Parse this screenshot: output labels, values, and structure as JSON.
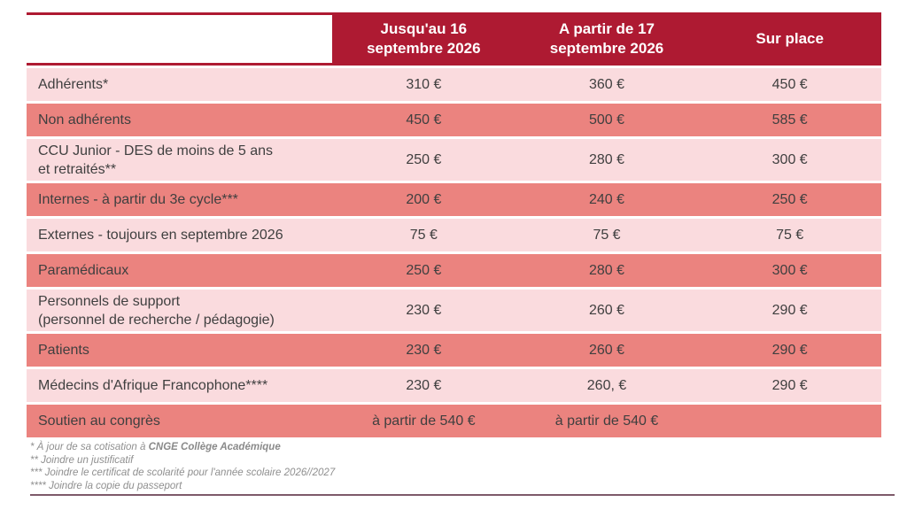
{
  "colors": {
    "header_red": "#ae1a32",
    "row_salmon": "#eb837f",
    "row_pink": "#fadbde",
    "footnote_gray": "#8f8f8f"
  },
  "table": {
    "columns": [
      "",
      "Jusqu'au 16\nseptembre 2026",
      "A partir de 17\nseptembre 2026",
      "Sur place"
    ],
    "rows": [
      {
        "label": "Adhérents*",
        "shade": "light",
        "size": "single",
        "values": [
          "310 €",
          "360 €",
          "450 €"
        ]
      },
      {
        "label": "Non adhérents",
        "shade": "dark",
        "size": "single",
        "values": [
          "450 €",
          "500 €",
          "585 €"
        ]
      },
      {
        "label": "CCU Junior - DES de moins de 5 ans\net retraités**",
        "shade": "light",
        "size": "double",
        "values": [
          "250 €",
          "280 €",
          "300 €"
        ]
      },
      {
        "label": "Internes - à partir du 3e cycle***",
        "shade": "dark",
        "size": "single",
        "values": [
          "200 €",
          "240 €",
          "250 €"
        ]
      },
      {
        "label": "Externes - toujours en septembre 2026",
        "shade": "light",
        "size": "single",
        "values": [
          "75 €",
          "75 €",
          "75 €"
        ]
      },
      {
        "label": "Paramédicaux",
        "shade": "dark",
        "size": "single",
        "values": [
          "250 €",
          "280 €",
          "300 €"
        ]
      },
      {
        "label": "Personnels de support\n(personnel de recherche / pédagogie)",
        "shade": "light",
        "size": "double",
        "values": [
          "230 €",
          "260 €",
          "290 €"
        ]
      },
      {
        "label": "Patients",
        "shade": "dark",
        "size": "single",
        "values": [
          "230 €",
          "260 €",
          "290 €"
        ]
      },
      {
        "label": "Médecins d'Afrique Francophone****",
        "shade": "light",
        "size": "single",
        "values": [
          "230 €",
          "260, €",
          "290 €"
        ]
      },
      {
        "label": "Soutien au congrès",
        "shade": "dark",
        "size": "single",
        "values": [
          "à partir de 540 €",
          "à partir de 540 €",
          ""
        ]
      }
    ]
  },
  "footnotes": {
    "note1_prefix": "* À jour de sa cotisation à ",
    "note1_bold": "CNGE Collège Académique",
    "note2": "** Joindre un justificatif",
    "note3": "*** Joindre le certificat de scolarité pour l'année scolaire 2026//2027",
    "note4": "**** Joindre la copie du passeport"
  },
  "chart_data": {
    "type": "table",
    "title": "",
    "columns": [
      "Catégorie",
      "Jusqu'au 16 septembre 2026",
      "A partir de 17 septembre 2026",
      "Sur place"
    ],
    "rows": [
      [
        "Adhérents*",
        "310 €",
        "360 €",
        "450 €"
      ],
      [
        "Non adhérents",
        "450 €",
        "500 €",
        "585 €"
      ],
      [
        "CCU Junior - DES de moins de 5 ans et retraités**",
        "250 €",
        "280 €",
        "300 €"
      ],
      [
        "Internes - à partir du 3e cycle***",
        "200 €",
        "240 €",
        "250 €"
      ],
      [
        "Externes - toujours en septembre 2026",
        "75 €",
        "75 €",
        "75 €"
      ],
      [
        "Paramédicaux",
        "250 €",
        "280 €",
        "300 €"
      ],
      [
        "Personnels de support (personnel de recherche / pédagogie)",
        "230 €",
        "260 €",
        "290 €"
      ],
      [
        "Patients",
        "230 €",
        "260 €",
        "290 €"
      ],
      [
        "Médecins d'Afrique Francophone****",
        "230 €",
        "260, €",
        "290 €"
      ],
      [
        "Soutien au congrès",
        "à partir de 540 €",
        "à partir de 540 €",
        ""
      ]
    ]
  }
}
